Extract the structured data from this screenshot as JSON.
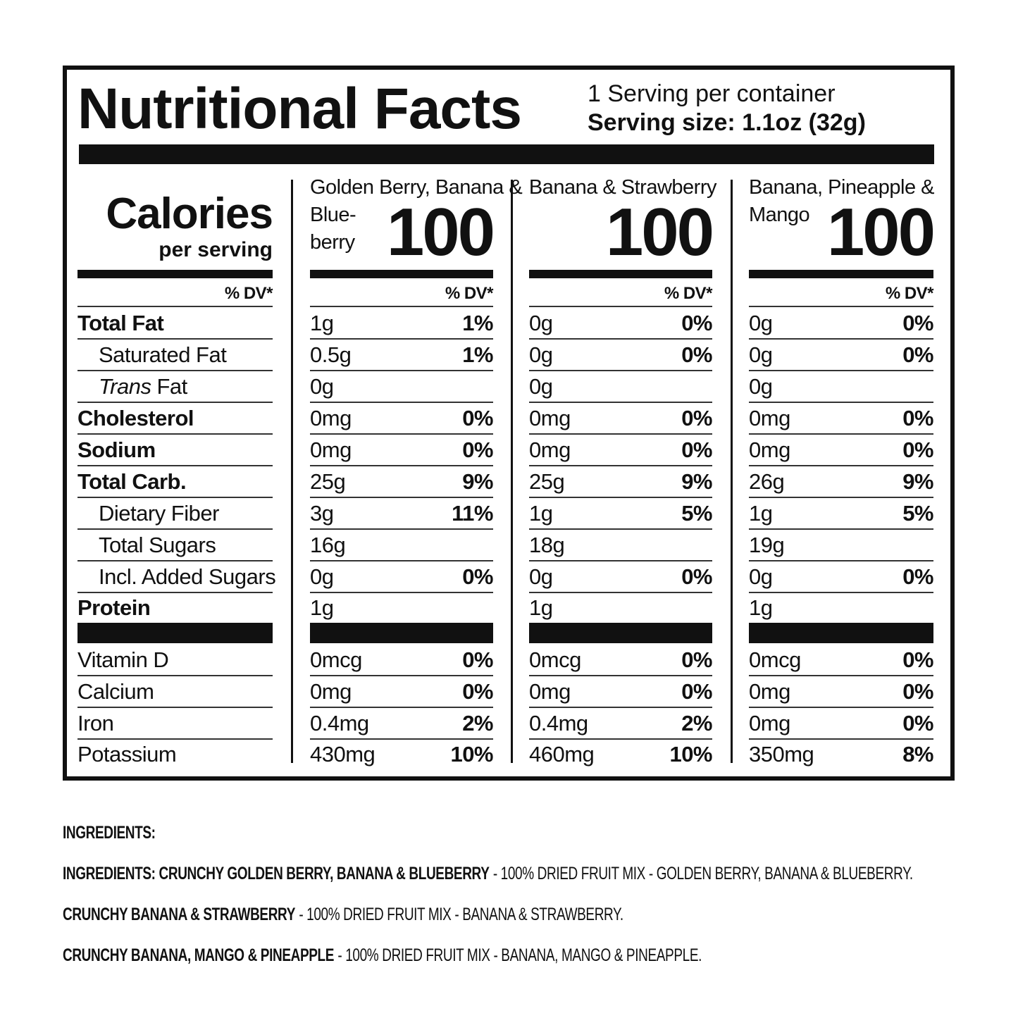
{
  "title": "Nutritional Facts",
  "servings": "1 Serving per container",
  "serving_size": "Serving size: 1.1oz (32g)",
  "calories_label": "Calories",
  "per_serving": "per serving",
  "dv_header": "% DV*",
  "nutrients": [
    {
      "name": "Total Fat"
    },
    {
      "name": "Saturated Fat"
    },
    {
      "name_italic": "Trans",
      "name": "Fat"
    },
    {
      "name": "Cholesterol"
    },
    {
      "name": "Sodium"
    },
    {
      "name": "Total Carb."
    },
    {
      "name": "Dietary Fiber"
    },
    {
      "name": "Total Sugars"
    },
    {
      "name": "Incl. Added Sugars"
    },
    {
      "name": "Protein"
    }
  ],
  "vitamins": [
    "Vitamin D",
    "Calcium",
    "Iron",
    "Potassium"
  ],
  "products": [
    {
      "name_lines": [
        "Golden Berry, Banana &",
        "Blue-",
        "berry"
      ],
      "calories": "100",
      "rows": [
        [
          "1g",
          "1%"
        ],
        [
          "0.5g",
          "1%"
        ],
        [
          "0g"
        ],
        [
          "0mg",
          "0%"
        ],
        [
          "0mg",
          "0%"
        ],
        [
          "25g",
          "9%"
        ],
        [
          "3g",
          "11%"
        ],
        [
          "16g"
        ],
        [
          "0g",
          "0%"
        ],
        [
          "1g"
        ]
      ],
      "vitamins": [
        [
          "0mcg",
          "0%"
        ],
        [
          "0mg",
          "0%"
        ],
        [
          "0.4mg",
          "2%"
        ],
        [
          "430mg",
          "10%"
        ]
      ]
    },
    {
      "name_lines": [
        "Banana & Strawberry"
      ],
      "calories": "100",
      "rows": [
        [
          "0g",
          "0%"
        ],
        [
          "0g",
          "0%"
        ],
        [
          "0g"
        ],
        [
          "0mg",
          "0%"
        ],
        [
          "0mg",
          "0%"
        ],
        [
          "25g",
          "9%"
        ],
        [
          "1g",
          "5%"
        ],
        [
          "18g"
        ],
        [
          "0g",
          "0%"
        ],
        [
          "1g"
        ]
      ],
      "vitamins": [
        [
          "0mcg",
          "0%"
        ],
        [
          "0mg",
          "0%"
        ],
        [
          "0.4mg",
          "2%"
        ],
        [
          "460mg",
          "10%"
        ]
      ]
    },
    {
      "name_lines": [
        "Banana, Pineapple &",
        "Mango"
      ],
      "calories": "100",
      "rows": [
        [
          "0g",
          "0%"
        ],
        [
          "0g",
          "0%"
        ],
        [
          "0g"
        ],
        [
          "0mg",
          "0%"
        ],
        [
          "0mg",
          "0%"
        ],
        [
          "26g",
          "9%"
        ],
        [
          "1g",
          "5%"
        ],
        [
          "19g"
        ],
        [
          "0g",
          "0%"
        ],
        [
          "1g"
        ]
      ],
      "vitamins": [
        [
          "0mcg",
          "0%"
        ],
        [
          "0mg",
          "0%"
        ],
        [
          "0mg",
          "0%"
        ],
        [
          "350mg",
          "8%"
        ]
      ]
    }
  ],
  "ingredients": {
    "heading": "INGREDIENTS:",
    "lines": [
      {
        "label": "INGREDIENTS: CRUNCHY GOLDEN BERRY, BANANA & BLUEBERRY",
        "text": "- 100% DRIED FRUIT MIX - GOLDEN BERRY, BANANA & BLUEBERRY."
      },
      {
        "label": "CRUNCHY BANANA & STRAWBERRY",
        "text": "- 100% DRIED FRUIT MIX - BANANA & STRAWBERRY."
      },
      {
        "label": "CRUNCHY BANANA, MANGO & PINEAPPLE",
        "text": "- 100% DRIED FRUIT MIX - BANANA, MANGO & PINEAPPLE."
      }
    ]
  }
}
